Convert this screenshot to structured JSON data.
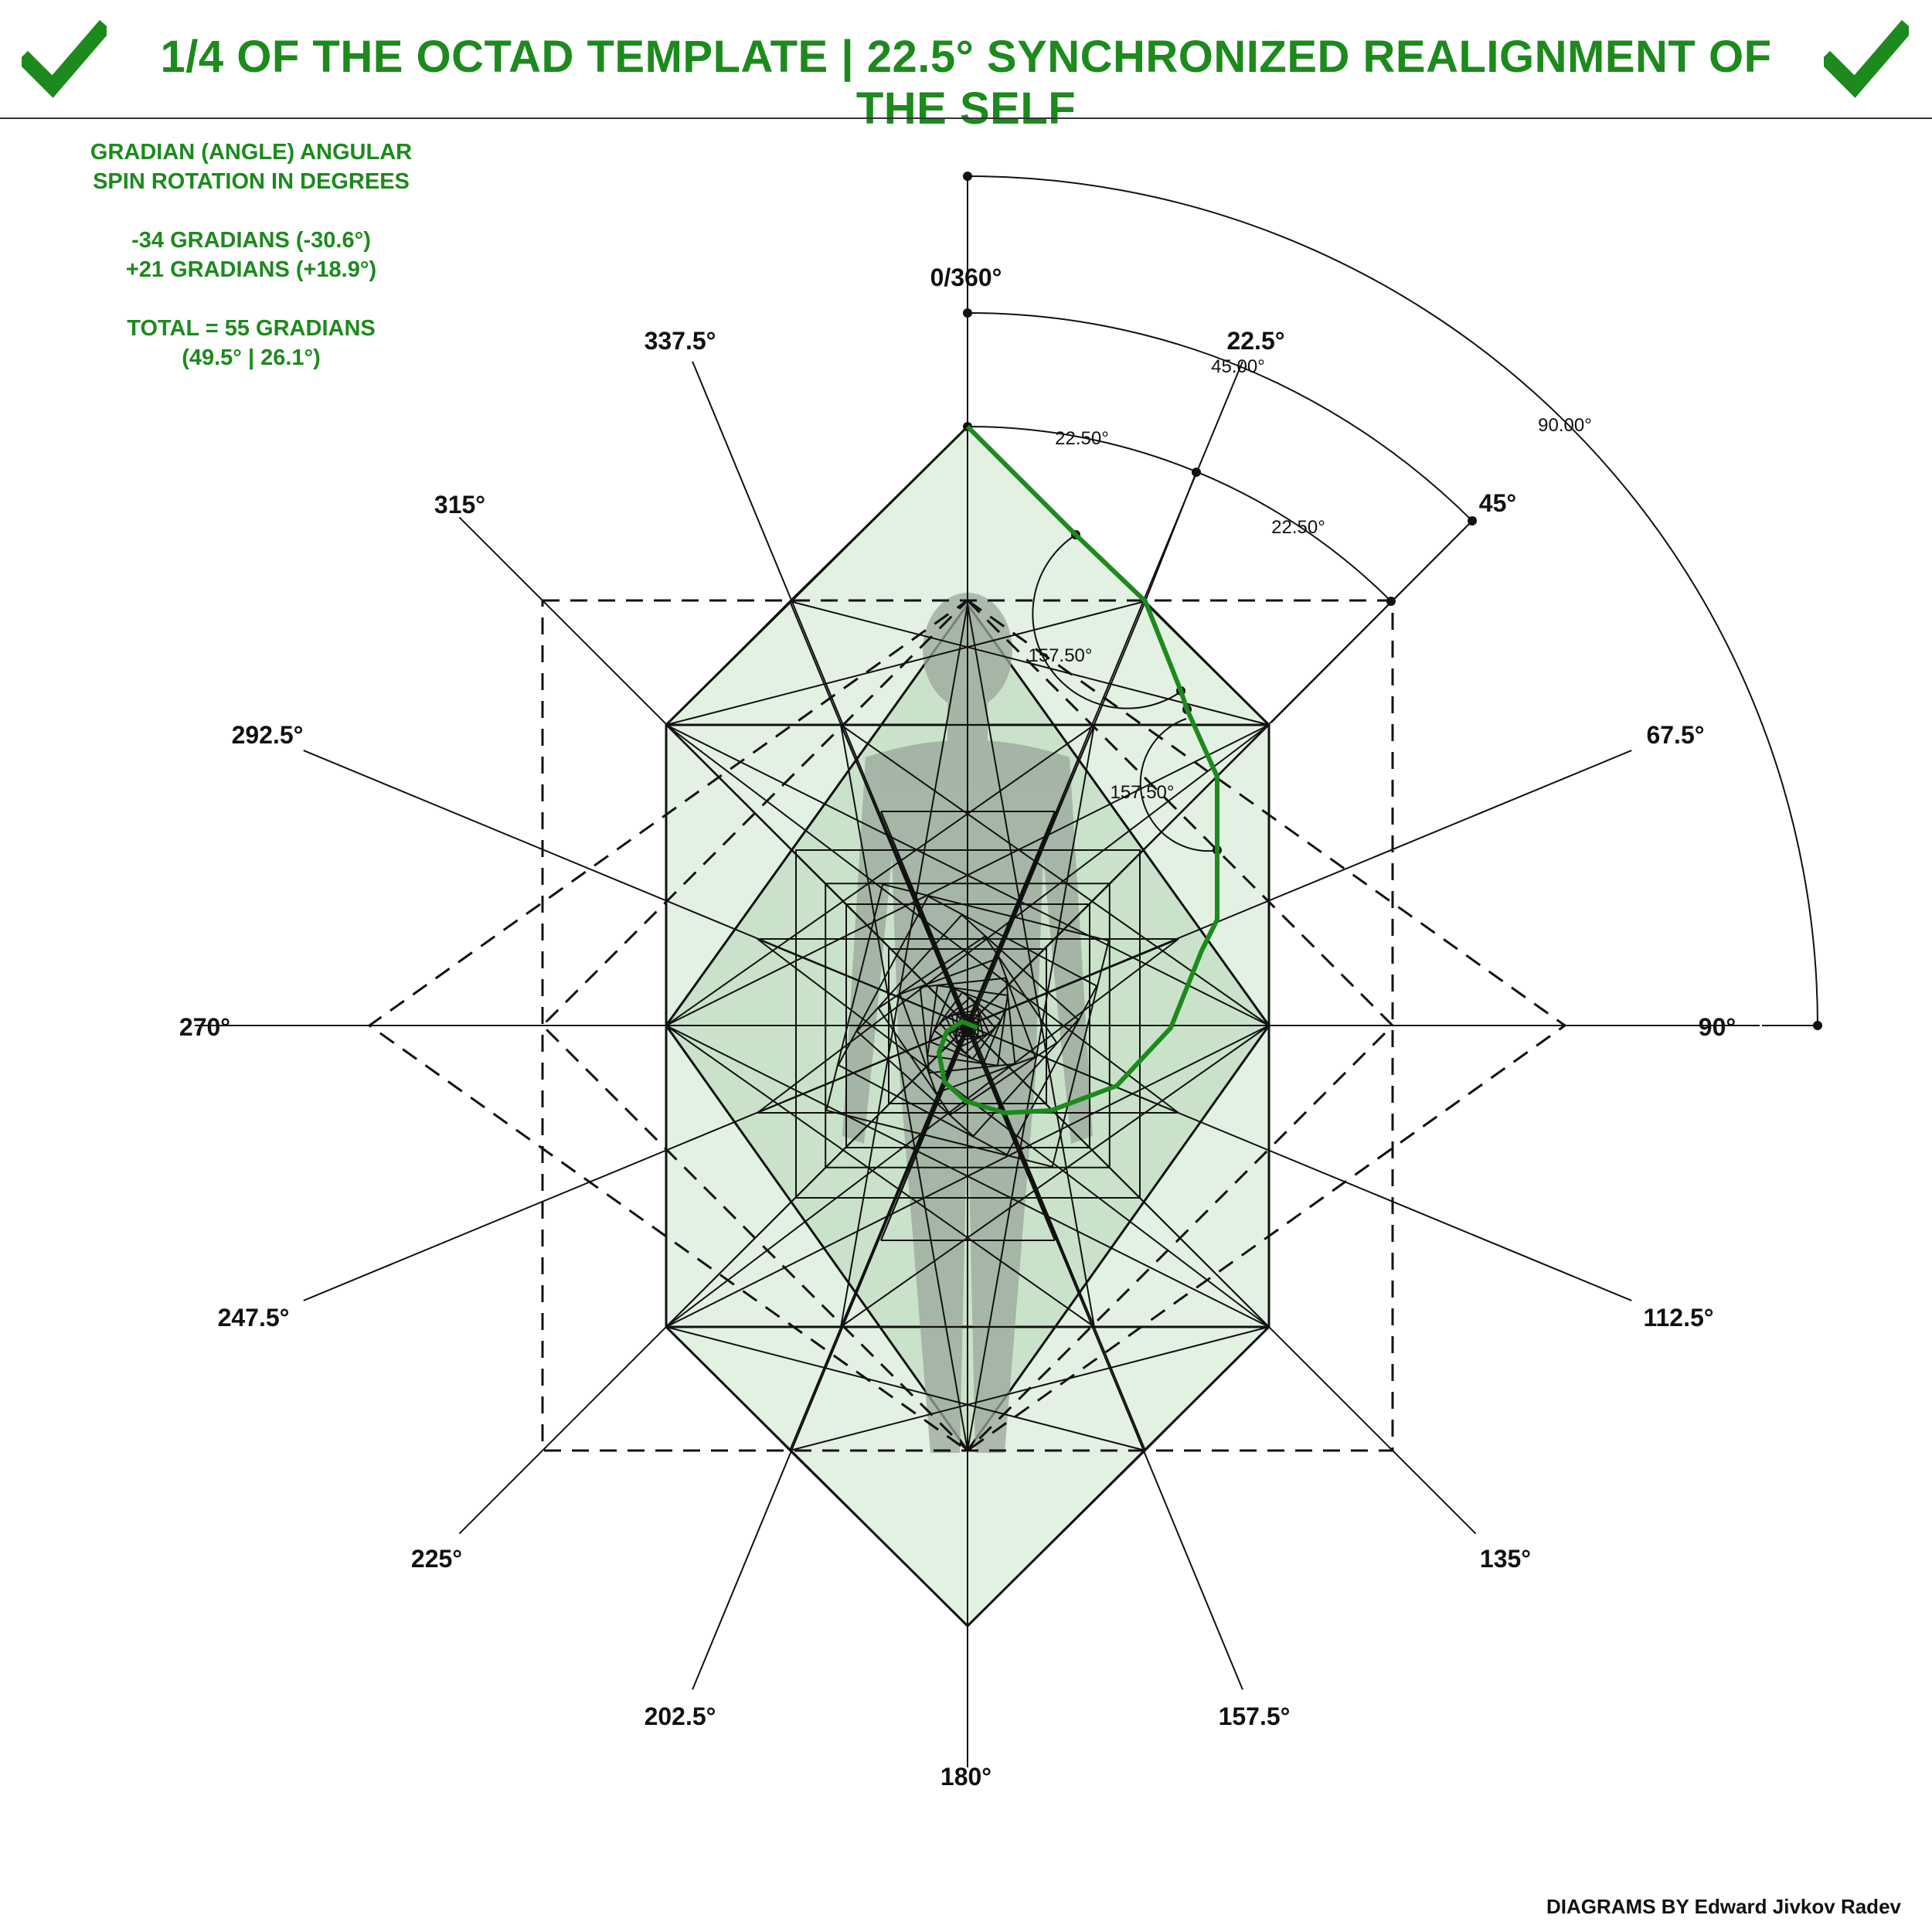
{
  "header": {
    "title": "1/4 OF THE OCTAD TEMPLATE | 22.5° SYNCHRONIZED REALIGNMENT OF THE SELF",
    "icon_left": "check-icon",
    "icon_right": "check-icon",
    "accent_color": "#1c8a1c"
  },
  "info": {
    "line1": "GRADIAN (ANGLE) ANGULAR",
    "line2": "SPIN ROTATION IN DEGREES",
    "line3": "-34 GRADIANS (-30.6°)",
    "line4": "+21 GRADIANS (+18.9°)",
    "line5": "TOTAL = 55 GRADIANS",
    "line6": "(49.5° | 26.1°)"
  },
  "diagram": {
    "direction_labels": {
      "d0": "0/360°",
      "d22": "22.5°",
      "d45": "45°",
      "d67": "67.5°",
      "d90": "90°",
      "d112": "112.5°",
      "d135": "135°",
      "d157": "157.5°",
      "d180": "180°",
      "d202": "202.5°",
      "d225": "225°",
      "d247": "247.5°",
      "d270": "270°",
      "d292": "292.5°",
      "d315": "315°",
      "d337": "337.5°"
    },
    "measure_labels": {
      "arc90": "90.00°",
      "arc45": "45.00°",
      "arc22a": "22.50°",
      "arc22b": "22.50°",
      "angle157a": "157.50°",
      "angle157b": "157.50°"
    },
    "colors": {
      "fill": "#e3f1e3",
      "fill_inner": "#c9e2c9",
      "spiral": "#1c8a1c",
      "figure": "#9aa79a"
    }
  },
  "credit": "DIAGRAMS BY Edward Jivkov Radev"
}
